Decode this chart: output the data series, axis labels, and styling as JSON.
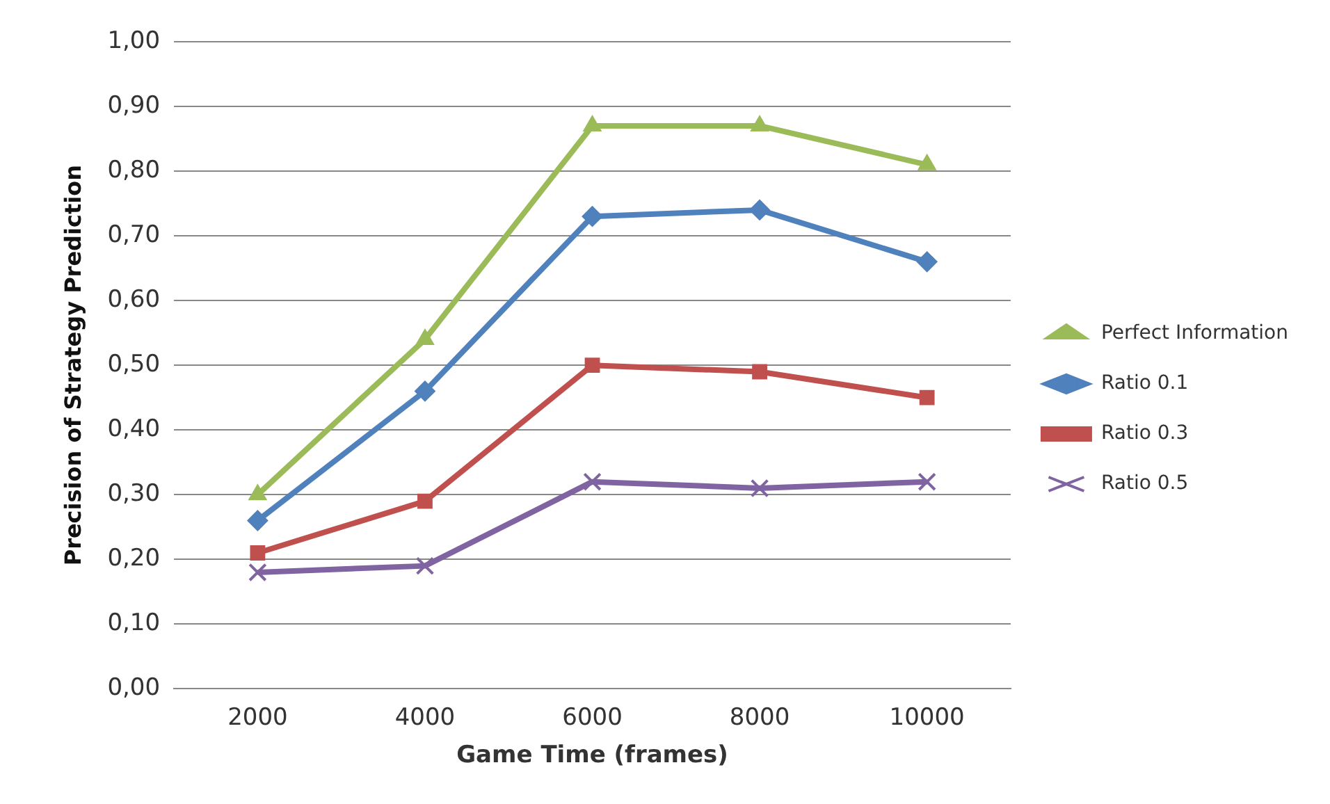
{
  "chart_data": {
    "type": "line",
    "xlabel": "Game Time (frames)",
    "ylabel": "Precision of Strategy Prediction",
    "categories": [
      "2000",
      "4000",
      "6000",
      "8000",
      "10000"
    ],
    "series": [
      {
        "name": "Perfect Information",
        "color": "#9bbb59",
        "marker": "triangle",
        "values": [
          0.3,
          0.54,
          0.87,
          0.87,
          0.81
        ]
      },
      {
        "name": "Ratio 0.1",
        "color": "#4f81bd",
        "marker": "diamond",
        "values": [
          0.26,
          0.46,
          0.73,
          0.74,
          0.66
        ]
      },
      {
        "name": "Ratio 0.3",
        "color": "#c0504d",
        "marker": "square",
        "values": [
          0.21,
          0.29,
          0.5,
          0.49,
          0.45
        ]
      },
      {
        "name": "Ratio 0.5",
        "color": "#8064a2",
        "marker": "cross",
        "values": [
          0.18,
          0.19,
          0.32,
          0.31,
          0.32
        ]
      }
    ],
    "ylim": [
      0,
      1
    ],
    "yticks": [
      {
        "value": 0,
        "label": "0,00"
      },
      {
        "value": 0.1,
        "label": "0,10"
      },
      {
        "value": 0.2,
        "label": "0,20"
      },
      {
        "value": 0.3,
        "label": "0,30"
      },
      {
        "value": 0.4,
        "label": "0,40"
      },
      {
        "value": 0.5,
        "label": "0,50"
      },
      {
        "value": 0.6,
        "label": "0,60"
      },
      {
        "value": 0.7,
        "label": "0,70"
      },
      {
        "value": 0.8,
        "label": "0,80"
      },
      {
        "value": 0.9,
        "label": "0,90"
      },
      {
        "value": 1,
        "label": "1,00"
      }
    ],
    "grid": "y",
    "legend": "right",
    "line_style": "solid"
  }
}
